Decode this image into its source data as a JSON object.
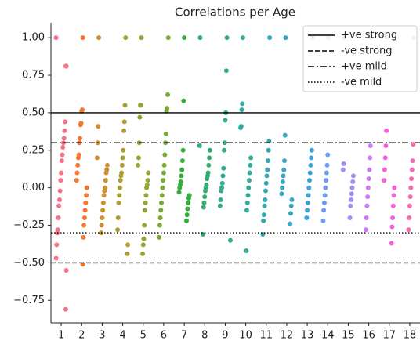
{
  "chart_data": {
    "type": "strip",
    "title": "Correlations per Age",
    "categories": [
      "1",
      "2",
      "3",
      "4",
      "5",
      "6",
      "7",
      "8",
      "9",
      "10",
      "11",
      "12",
      "13",
      "14",
      "15",
      "16",
      "17",
      "18"
    ],
    "colors": [
      "#f67088",
      "#f37932",
      "#cb9131",
      "#ae9d31",
      "#97a431",
      "#77ab31",
      "#33b039",
      "#35ad72",
      "#36ab8f",
      "#37aaa0",
      "#38a8af",
      "#39a6c0",
      "#3ba3d9",
      "#6e9bf4",
      "#a48cf4",
      "#cc79f4",
      "#f461dd",
      "#f56cb3"
    ],
    "values": [
      [
        1.0,
        0.81,
        0.81,
        0.44,
        0.38,
        0.33,
        0.3,
        0.27,
        0.22,
        0.18,
        0.1,
        0.05,
        -0.02,
        -0.08,
        -0.12,
        -0.2,
        -0.28,
        -0.3,
        -0.38,
        -0.47,
        -0.55,
        -0.81
      ],
      [
        1.0,
        0.52,
        0.51,
        0.43,
        0.42,
        0.33,
        0.3,
        0.22,
        0.2,
        0.15,
        0.1,
        0.05,
        0.0,
        -0.05,
        -0.1,
        -0.15,
        -0.2,
        -0.25,
        -0.33,
        -0.51
      ],
      [
        1.0,
        0.41,
        0.3,
        0.2,
        0.15,
        0.12,
        0.1,
        0.05,
        0.0,
        -0.02,
        -0.05,
        -0.1,
        -0.15,
        -0.2,
        -0.25,
        -0.3
      ],
      [
        1.0,
        0.55,
        0.44,
        0.38,
        0.25,
        0.2,
        0.15,
        0.1,
        0.08,
        0.05,
        0.0,
        -0.05,
        -0.1,
        -0.2,
        -0.28,
        -0.38,
        -0.44
      ],
      [
        1.0,
        0.55,
        0.55,
        0.47,
        0.3,
        0.2,
        0.15,
        0.1,
        0.05,
        0.02,
        0.0,
        -0.05,
        -0.1,
        -0.15,
        -0.25,
        -0.34,
        -0.38,
        -0.44
      ],
      [
        1.0,
        0.62,
        0.53,
        0.51,
        0.36,
        0.3,
        0.22,
        0.15,
        0.1,
        0.05,
        0.0,
        -0.05,
        -0.1,
        -0.15,
        -0.2,
        -0.25,
        -0.33
      ],
      [
        1.0,
        0.58,
        0.25,
        0.18,
        0.12,
        0.08,
        0.04,
        0.02,
        0.0,
        -0.03,
        -0.05,
        -0.07,
        -0.1,
        -0.14,
        -0.18,
        -0.22
      ],
      [
        1.0,
        0.28,
        0.25,
        0.2,
        0.15,
        0.1,
        0.08,
        0.06,
        0.02,
        0.0,
        -0.02,
        -0.06,
        -0.1,
        -0.13,
        -0.31
      ],
      [
        1.0,
        0.78,
        0.5,
        0.45,
        0.3,
        0.25,
        0.13,
        0.08,
        0.03,
        0.0,
        -0.02,
        -0.08,
        -0.12,
        -0.35
      ],
      [
        1.0,
        0.56,
        0.52,
        0.41,
        0.4,
        0.2,
        0.15,
        0.1,
        0.05,
        0.0,
        -0.05,
        -0.1,
        -0.15,
        -0.42
      ],
      [
        1.0,
        0.31,
        0.25,
        0.18,
        0.12,
        0.08,
        0.03,
        -0.02,
        -0.08,
        -0.12,
        -0.18,
        -0.22,
        -0.31
      ],
      [
        1.0,
        0.35,
        0.18,
        0.12,
        0.08,
        0.04,
        0.0,
        -0.04,
        -0.08,
        -0.12,
        -0.17,
        -0.24
      ],
      [
        1.0,
        0.25,
        0.2,
        0.15,
        0.1,
        0.05,
        0.0,
        -0.05,
        -0.1,
        -0.15,
        -0.2
      ],
      [
        1.0,
        0.22,
        0.15,
        0.1,
        0.05,
        0.0,
        -0.05,
        -0.1,
        -0.15,
        -0.22
      ],
      [
        1.0,
        0.16,
        0.12,
        0.08,
        0.04,
        0.0,
        -0.04,
        -0.08,
        -0.12,
        -0.2
      ],
      [
        1.0,
        0.28,
        0.2,
        0.12,
        0.06,
        0.0,
        -0.06,
        -0.12,
        -0.2,
        -0.28
      ],
      [
        1.0,
        0.38,
        0.28,
        0.2,
        0.12,
        0.05,
        0.0,
        -0.05,
        -0.12,
        -0.2,
        -0.26,
        -0.37
      ],
      [
        1.0,
        0.29,
        0.18,
        0.12,
        0.06,
        0.0,
        -0.06,
        -0.12,
        -0.2,
        -0.28
      ]
    ],
    "reference_lines": [
      {
        "name": "+ve strong",
        "value": 0.5,
        "style": "solid"
      },
      {
        "name": "-ve strong",
        "value": -0.5,
        "style": "dashed"
      },
      {
        "name": "+ve mild",
        "value": 0.3,
        "style": "dashdot"
      },
      {
        "name": "-ve mild",
        "value": -0.3,
        "style": "dotted"
      }
    ],
    "legend": "upper right",
    "ylim": [
      -0.9,
      1.1
    ],
    "yticks": [
      {
        "value": 1,
        "label": "1.00"
      },
      {
        "value": 0.75,
        "label": "0.75"
      },
      {
        "value": 0.5,
        "label": "0.50"
      },
      {
        "value": 0.25,
        "label": "0.25"
      },
      {
        "value": 0,
        "label": "0.00"
      },
      {
        "value": -0.25,
        "label": "−0.25"
      },
      {
        "value": -0.5,
        "label": "−0.50"
      },
      {
        "value": -0.75,
        "label": "−0.75"
      }
    ]
  }
}
